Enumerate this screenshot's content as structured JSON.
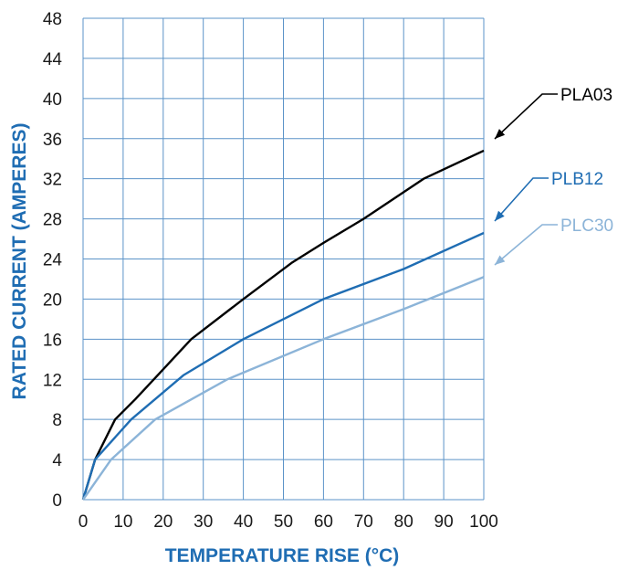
{
  "chart_data": {
    "type": "line",
    "title": "",
    "xlabel": "TEMPERATURE RISE (°C)",
    "ylabel": "RATED CURRENT (AMPERES)",
    "xlim": [
      0,
      100
    ],
    "ylim": [
      0,
      48
    ],
    "x_ticks": [
      "0",
      "10",
      "20",
      "30",
      "40",
      "50",
      "60",
      "70",
      "80",
      "90",
      "100"
    ],
    "y_ticks": [
      "0",
      "4",
      "8",
      "12",
      "16",
      "20",
      "24",
      "28",
      "32",
      "36",
      "40",
      "44",
      "48"
    ],
    "grid": true,
    "series": [
      {
        "name": "PLA03",
        "color": "#000000",
        "points": [
          [
            0,
            0
          ],
          [
            3,
            4
          ],
          [
            8,
            8
          ],
          [
            13,
            10
          ],
          [
            20,
            13
          ],
          [
            27,
            16
          ],
          [
            40,
            20
          ],
          [
            52,
            23.6
          ],
          [
            60,
            25.6
          ],
          [
            70,
            28
          ],
          [
            85,
            32
          ],
          [
            100,
            34.8
          ]
        ]
      },
      {
        "name": "PLB12",
        "color": "#1f6db3",
        "points": [
          [
            0,
            0
          ],
          [
            3,
            4
          ],
          [
            12,
            8
          ],
          [
            25,
            12.4
          ],
          [
            40,
            16
          ],
          [
            60,
            20
          ],
          [
            80,
            23
          ],
          [
            100,
            26.6
          ]
        ]
      },
      {
        "name": "PLC30",
        "color": "#8cb4d8",
        "points": [
          [
            0,
            0
          ],
          [
            7,
            4
          ],
          [
            18,
            8
          ],
          [
            36,
            12
          ],
          [
            60,
            16
          ],
          [
            80,
            19
          ],
          [
            100,
            22.2
          ]
        ]
      }
    ]
  }
}
